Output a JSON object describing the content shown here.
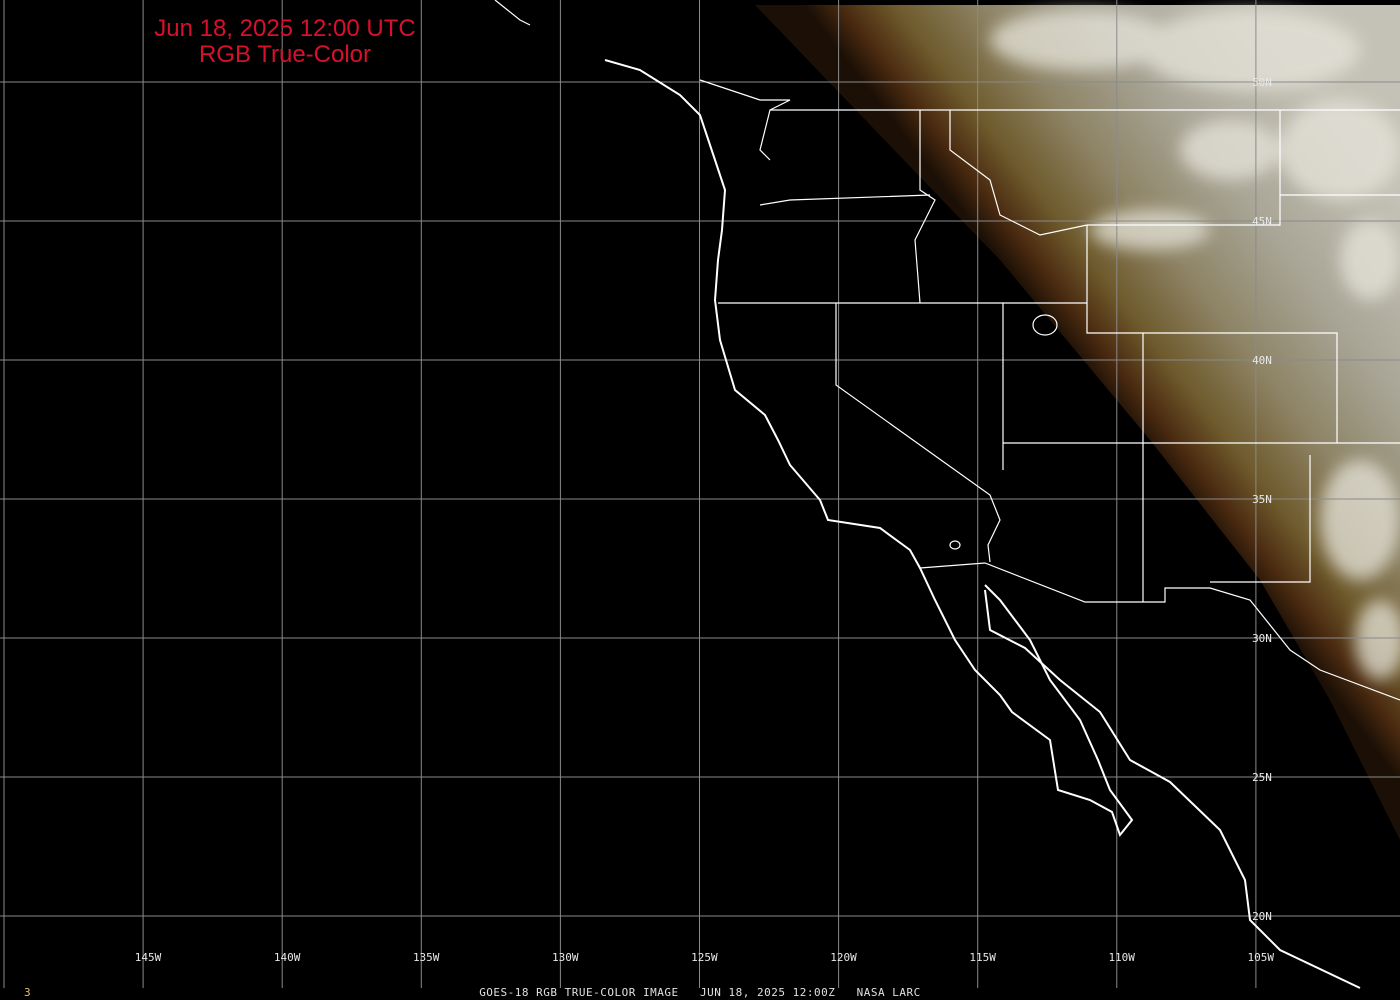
{
  "title": {
    "line1": "Jun 18, 2025 12:00 UTC",
    "line2": "RGB True-Color"
  },
  "footer": {
    "caption": "GOES-18 RGB TRUE-COLOR IMAGE   JUN 18, 2025 12:00Z   NASA LARC",
    "frame_number": "3"
  },
  "longitude_labels": [
    "145W",
    "140W",
    "135W",
    "130W",
    "125W",
    "120W",
    "115W",
    "110W",
    "105W"
  ],
  "latitude_labels": [
    "50N",
    "45N",
    "40N",
    "35N",
    "30N",
    "25N",
    "20N"
  ],
  "colors": {
    "title": "#d8102c",
    "grid": "#8a8a8a",
    "borders": "#ffffff",
    "frame_number": "#e8c060"
  }
}
